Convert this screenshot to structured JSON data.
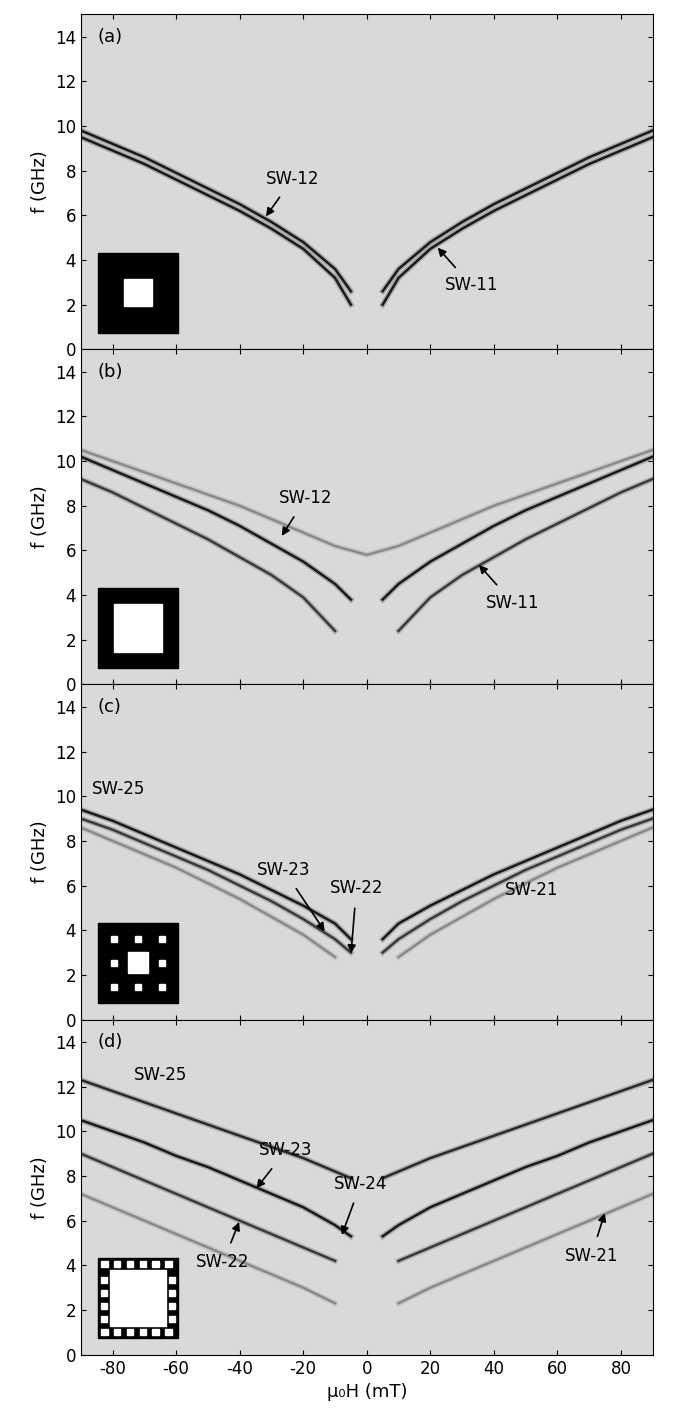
{
  "chart_data": [
    {
      "type": "line",
      "label": "(a)",
      "ylabel": "f (GHz)",
      "tick_labels": "y",
      "grid": false,
      "x": [
        -90,
        -80,
        -70,
        -60,
        -50,
        -40,
        -30,
        -20,
        -10,
        -5,
        0,
        5,
        10,
        20,
        30,
        40,
        50,
        60,
        70,
        80,
        90
      ],
      "series": [
        {
          "color": "#1a1a1a",
          "values": [
            9.8,
            9.2,
            8.6,
            7.9,
            7.2,
            6.5,
            5.7,
            4.8,
            3.6,
            2.6,
            null,
            2.6,
            3.6,
            4.8,
            5.7,
            6.5,
            7.2,
            7.9,
            8.6,
            9.2,
            9.8
          ]
        },
        {
          "color": "#1a1a1a",
          "values": [
            9.5,
            8.9,
            8.3,
            7.6,
            6.9,
            6.2,
            5.4,
            4.5,
            3.2,
            2.0,
            null,
            2.0,
            3.2,
            4.5,
            5.4,
            6.2,
            6.9,
            7.6,
            8.3,
            8.9,
            9.5
          ]
        }
      ],
      "xlim": [
        -90,
        90
      ],
      "ylim": [
        0,
        15
      ],
      "xticks": [
        -80,
        -60,
        -40,
        -20,
        0,
        20,
        40,
        60,
        80
      ],
      "yticks": [
        0,
        2,
        4,
        6,
        8,
        10,
        12,
        14
      ],
      "annotations": [
        {
          "text": "SW-12",
          "x": -32,
          "y": 5.9
        },
        {
          "text": "SW-11",
          "x": 22,
          "y": 4.6
        }
      ]
    },
    {
      "type": "line",
      "label": "(b)",
      "ylabel": "f (GHz)",
      "tick_labels": "y",
      "grid": false,
      "x": [
        -90,
        -80,
        -70,
        -60,
        -50,
        -40,
        -30,
        -20,
        -10,
        -5,
        0,
        5,
        10,
        20,
        30,
        40,
        50,
        60,
        70,
        80,
        90
      ],
      "series": [
        {
          "color": "#8a8a8a",
          "values": [
            10.5,
            10.0,
            9.5,
            9.0,
            8.5,
            8.0,
            7.4,
            6.8,
            6.2,
            6.0,
            5.8,
            6.0,
            6.2,
            6.8,
            7.4,
            8.0,
            8.5,
            9.0,
            9.5,
            10.0,
            10.5
          ]
        },
        {
          "color": "#1a1a1a",
          "values": [
            10.2,
            9.6,
            9.0,
            8.4,
            7.8,
            7.1,
            6.3,
            5.5,
            4.5,
            3.8,
            null,
            3.8,
            4.5,
            5.5,
            6.3,
            7.1,
            7.8,
            8.4,
            9.0,
            9.6,
            10.2
          ]
        },
        {
          "color": "#3a3a3a",
          "values": [
            9.2,
            8.6,
            7.9,
            7.2,
            6.5,
            5.7,
            4.9,
            3.9,
            2.4,
            null,
            null,
            null,
            2.4,
            3.9,
            4.9,
            5.7,
            6.5,
            7.2,
            7.9,
            8.6,
            9.2
          ]
        }
      ],
      "xlim": [
        -90,
        90
      ],
      "ylim": [
        0,
        15
      ],
      "xticks": [
        -80,
        -60,
        -40,
        -20,
        0,
        20,
        40,
        60,
        80
      ],
      "yticks": [
        0,
        2,
        4,
        6,
        8,
        10,
        12,
        14
      ],
      "annotations": [
        {
          "text": "SW-12",
          "x": -27,
          "y": 6.6
        },
        {
          "text": "SW-11",
          "x": 35,
          "y": 5.4
        }
      ]
    },
    {
      "type": "line",
      "label": "(c)",
      "ylabel": "f (GHz)",
      "tick_labels": "y",
      "grid": false,
      "x": [
        -90,
        -80,
        -70,
        -60,
        -50,
        -40,
        -30,
        -20,
        -10,
        -5,
        0,
        5,
        10,
        20,
        30,
        40,
        50,
        60,
        70,
        80,
        90
      ],
      "series": [
        {
          "color": "#1a1a1a",
          "values": [
            9.4,
            8.9,
            8.3,
            7.7,
            7.1,
            6.5,
            5.8,
            5.1,
            4.3,
            3.6,
            null,
            3.6,
            4.3,
            5.1,
            5.8,
            6.5,
            7.1,
            7.7,
            8.3,
            8.9,
            9.4
          ]
        },
        {
          "color": "#3a3a3a",
          "values": [
            9.0,
            8.5,
            7.9,
            7.3,
            6.7,
            6.0,
            5.3,
            4.5,
            3.6,
            3.0,
            null,
            3.0,
            3.6,
            4.5,
            5.3,
            6.0,
            6.7,
            7.3,
            7.9,
            8.5,
            9.0
          ]
        },
        {
          "color": "#8a8a8a",
          "values": [
            8.6,
            8.0,
            7.4,
            6.8,
            6.1,
            5.4,
            4.6,
            3.8,
            2.8,
            null,
            null,
            null,
            2.8,
            3.8,
            4.6,
            5.4,
            6.1,
            6.8,
            7.4,
            8.0,
            8.6
          ]
        }
      ],
      "xlim": [
        -90,
        90
      ],
      "ylim": [
        0,
        15
      ],
      "xticks": [
        -80,
        -60,
        -40,
        -20,
        0,
        20,
        40,
        60,
        80
      ],
      "yticks": [
        0,
        2,
        4,
        6,
        8,
        10,
        12,
        14
      ],
      "annotations": [
        {
          "text": "SW-25",
          "x": -78,
          "y": 10.3
        },
        {
          "text": "SW-23",
          "x": -13,
          "y": 3.9
        },
        {
          "text": "SW-22",
          "x": -5,
          "y": 2.9
        },
        {
          "text": "SW-21",
          "x": 52,
          "y": 5.8
        }
      ]
    },
    {
      "type": "line",
      "label": "(d)",
      "ylabel": "f (GHz)",
      "xlabel": "μ₀H (mT)",
      "grid": false,
      "x": [
        -90,
        -80,
        -70,
        -60,
        -50,
        -40,
        -30,
        -20,
        -10,
        -5,
        0,
        5,
        10,
        20,
        30,
        40,
        50,
        60,
        70,
        80,
        90
      ],
      "series": [
        {
          "color": "#2a2a2a",
          "values": [
            12.3,
            11.8,
            11.3,
            10.8,
            10.3,
            9.8,
            9.3,
            8.8,
            8.2,
            7.9,
            null,
            7.9,
            8.2,
            8.8,
            9.3,
            9.8,
            10.3,
            10.8,
            11.3,
            11.8,
            12.3
          ]
        },
        {
          "color": "#1a1a1a",
          "values": [
            10.5,
            10.0,
            9.5,
            8.9,
            8.4,
            7.8,
            7.2,
            6.6,
            5.8,
            5.3,
            null,
            5.3,
            5.8,
            6.6,
            7.2,
            7.8,
            8.4,
            8.9,
            9.5,
            10.0,
            10.5
          ]
        },
        {
          "color": "#3a3a3a",
          "values": [
            9.0,
            8.4,
            7.8,
            7.2,
            6.6,
            6.0,
            5.4,
            4.8,
            4.2,
            null,
            null,
            null,
            4.2,
            4.8,
            5.4,
            6.0,
            6.6,
            7.2,
            7.8,
            8.4,
            9.0
          ]
        },
        {
          "color": "#8a8a8a",
          "values": [
            7.2,
            6.6,
            6.0,
            5.4,
            4.8,
            4.2,
            3.6,
            3.0,
            2.3,
            null,
            null,
            null,
            2.3,
            3.0,
            3.6,
            4.2,
            4.8,
            5.4,
            6.0,
            6.6,
            7.2
          ]
        }
      ],
      "xlim": [
        -90,
        90
      ],
      "ylim": [
        0,
        15
      ],
      "xticks": [
        -80,
        -60,
        -40,
        -20,
        0,
        20,
        40,
        60,
        80
      ],
      "yticks": [
        0,
        2,
        4,
        6,
        8,
        10,
        12,
        14
      ],
      "annotations": [
        {
          "text": "SW-25",
          "x": -65,
          "y": 12.5
        },
        {
          "text": "SW-23",
          "x": -35,
          "y": 7.4
        },
        {
          "text": "SW-24",
          "x": -8,
          "y": 5.3
        },
        {
          "text": "SW-22",
          "x": -40,
          "y": 6.0
        },
        {
          "text": "SW-21",
          "x": 75,
          "y": 6.4
        }
      ]
    }
  ]
}
